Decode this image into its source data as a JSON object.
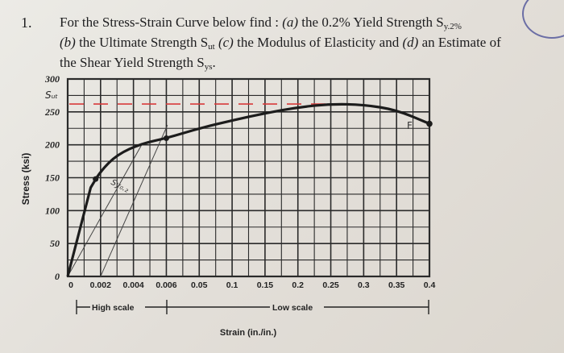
{
  "problem": {
    "number": "1.",
    "line1_a": "For the Stress-Strain Curve below find : ",
    "line1_b": "(a)",
    "line1_c": " the 0.2% Yield Strength S",
    "line1_sub": "y.2%",
    "line2_a": "(b)",
    "line2_b": " the Ultimate Strength S",
    "line2_sub": "ut",
    "line2_c": " (c)",
    "line2_d": " the Modulus of Elasticity and ",
    "line2_e": "(d)",
    "line2_f": " an Estimate of",
    "line3_a": "the Shear Yield Strength S",
    "line3_sub": "ys",
    "line3_b": "."
  },
  "chart_data": {
    "type": "line",
    "ylabel": "Stress (ksi)",
    "xlabel": "Strain (in./in.)",
    "y_ticks": [
      "300",
      "250",
      "200",
      "150",
      "100",
      "50",
      "0"
    ],
    "x_ticks": [
      "0",
      "0.002",
      "0.004",
      "0.006",
      "0.05",
      "0.1",
      "0.15",
      "0.2",
      "0.25",
      "0.3",
      "0.35",
      "0.4"
    ],
    "ylim": [
      0,
      300
    ],
    "scales": {
      "high_label": "High scale",
      "high_range": [
        0,
        0.006
      ],
      "low_label": "Low scale",
      "low_range": [
        0,
        0.4
      ]
    },
    "curve": {
      "points": [
        [
          0,
          0
        ],
        [
          0.0017,
          148
        ],
        [
          0.05,
          200
        ],
        [
          0.1,
          218
        ],
        [
          0.2,
          245
        ],
        [
          0.25,
          262
        ],
        [
          0.3,
          260
        ],
        [
          0.35,
          250
        ],
        [
          0.4,
          228
        ]
      ],
      "markers": [
        [
          0.0017,
          150
        ],
        [
          0.006,
          210
        ],
        [
          0.4,
          228
        ]
      ]
    },
    "offset_line": {
      "x_start": 0.002,
      "slope_ksi_per_unit": 87000
    },
    "annotations": {
      "sut": "Sᵤₜ",
      "sy": "Sy₀.₂",
      "fracture": "F"
    }
  }
}
